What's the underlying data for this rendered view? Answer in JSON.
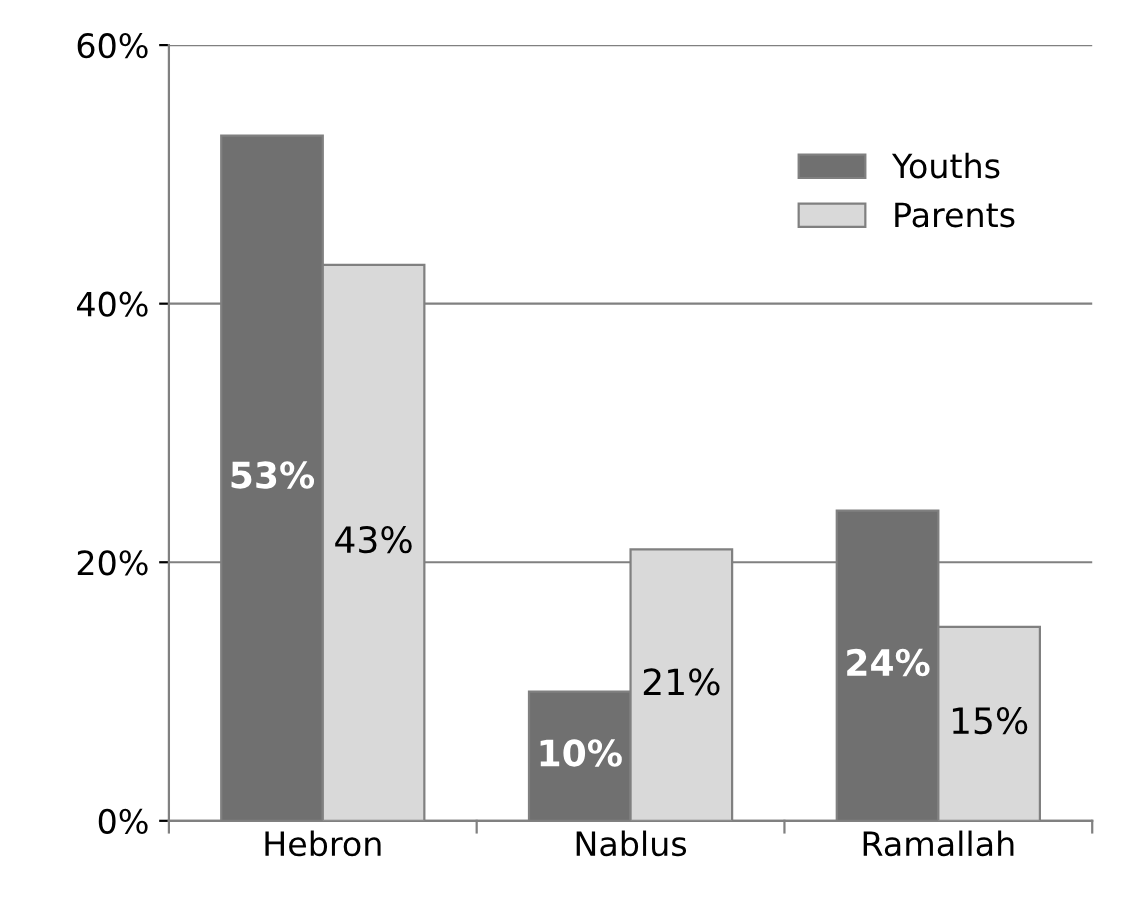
{
  "chart_data": {
    "type": "bar",
    "categories": [
      "Hebron",
      "Nablus",
      "Ramallah"
    ],
    "series": [
      {
        "name": "Youths",
        "color": "#707070",
        "values": [
          53,
          10,
          24
        ],
        "value_labels": [
          "53%",
          "10%",
          "24%"
        ]
      },
      {
        "name": "Parents",
        "color": "#d9d9d9",
        "values": [
          43,
          21,
          15
        ],
        "value_labels": [
          "43%",
          "21%",
          "15%"
        ]
      }
    ],
    "ylim": [
      0,
      60
    ],
    "yticks": [
      {
        "value": 0,
        "label": "0%"
      },
      {
        "value": 20,
        "label": "20%"
      },
      {
        "value": 40,
        "label": "40%"
      },
      {
        "value": 60,
        "label": "60%"
      }
    ],
    "grid": "y",
    "legend": "top right"
  }
}
